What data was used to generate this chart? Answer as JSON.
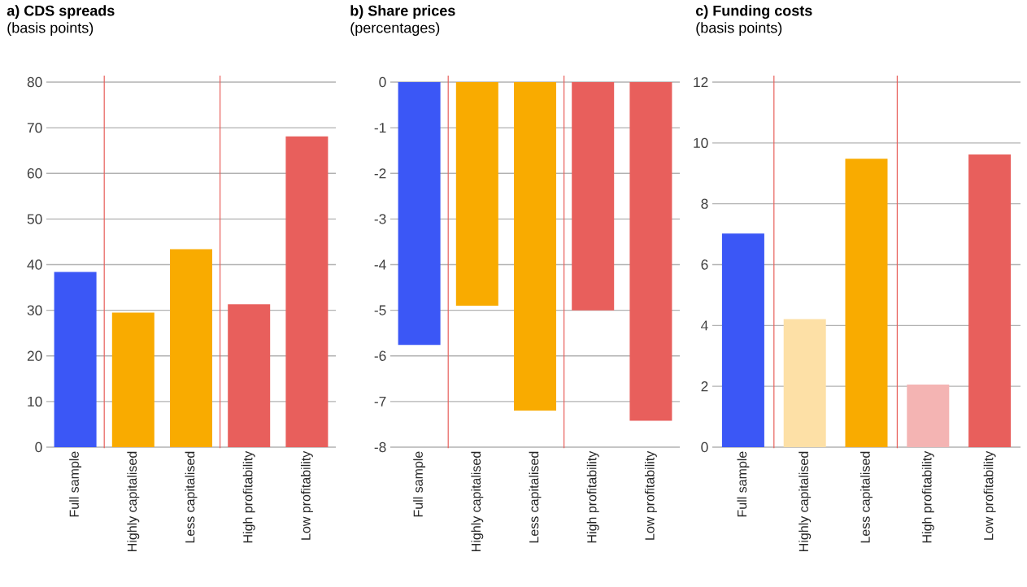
{
  "chart_data": [
    {
      "type": "bar",
      "title": "a) CDS spreads",
      "subtitle": "(basis points)",
      "categories": [
        "Full sample",
        "Highly capitalised",
        "Less capitalised",
        "High profitability",
        "Low profitability"
      ],
      "values": [
        38.4,
        29.5,
        43.4,
        31.3,
        68.1
      ],
      "colors": [
        "#3b57f6",
        "#f9ab00",
        "#f9ab00",
        "#e85f5c",
        "#e85f5c"
      ],
      "ylim": [
        0,
        80
      ],
      "yticks": [
        0,
        10,
        20,
        30,
        40,
        50,
        60,
        70,
        80
      ],
      "grid": "y"
    },
    {
      "type": "bar",
      "title": "b) Share prices",
      "subtitle": "(percentages)",
      "categories": [
        "Full sample",
        "Highly capitalised",
        "Less capitalised",
        "High profitability",
        "Low profitability"
      ],
      "values": [
        -5.76,
        -4.9,
        -7.2,
        -5.0,
        -7.42
      ],
      "colors": [
        "#3b57f6",
        "#f9ab00",
        "#f9ab00",
        "#e85f5c",
        "#e85f5c"
      ],
      "ylim": [
        -8,
        0
      ],
      "yticks": [
        -8,
        -7,
        -6,
        -5,
        -4,
        -3,
        -2,
        -1,
        0
      ],
      "grid": "y"
    },
    {
      "type": "bar",
      "title": "c) Funding costs",
      "subtitle": "(basis points)",
      "categories": [
        "Full sample",
        "Highly capitalised",
        "Less capitalised",
        "High profitability",
        "Low profitability"
      ],
      "values": [
        7.02,
        4.21,
        9.48,
        2.06,
        9.62
      ],
      "colors": [
        "#3b57f6",
        "#fde0a6",
        "#f9ab00",
        "#f4b4b3",
        "#e85f5c"
      ],
      "ylim": [
        0,
        12
      ],
      "yticks": [
        0,
        2,
        4,
        6,
        8,
        10,
        12
      ],
      "grid": "y"
    }
  ]
}
